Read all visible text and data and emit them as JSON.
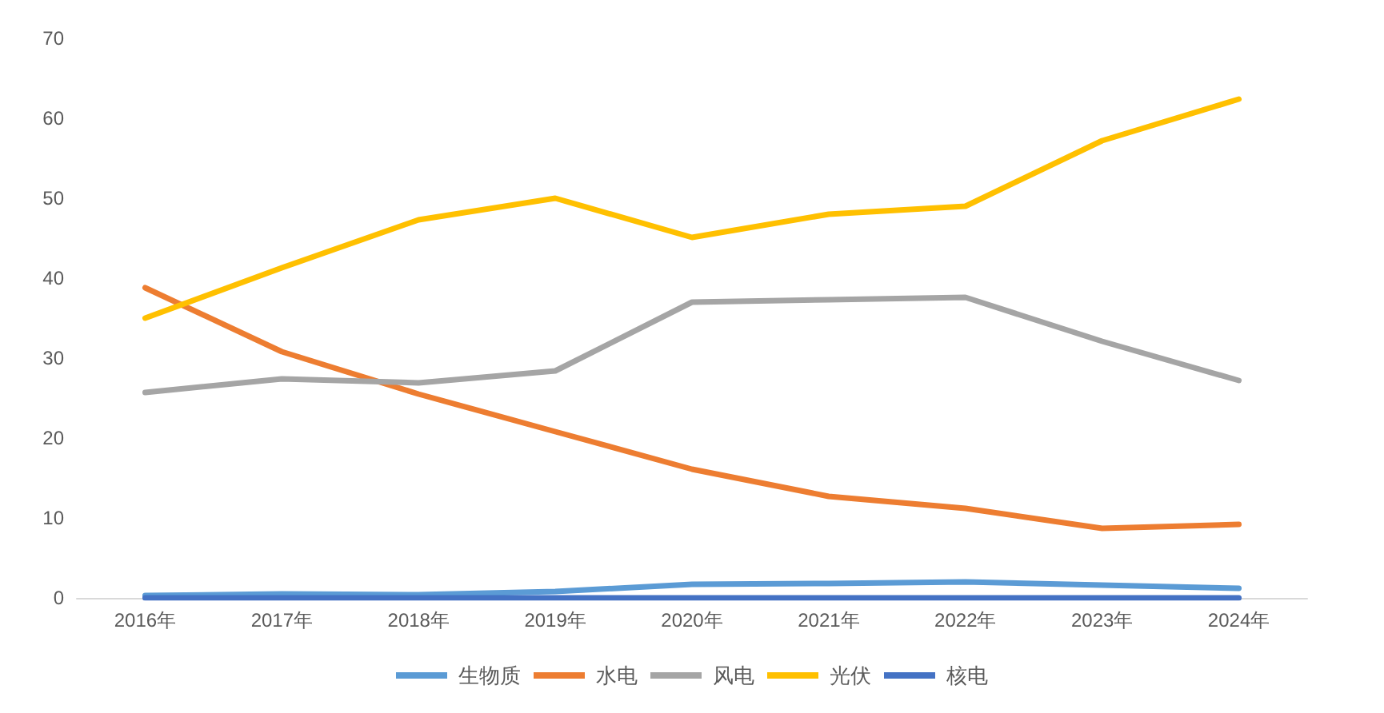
{
  "chart_data": {
    "type": "line",
    "categories": [
      "2016年",
      "2017年",
      "2018年",
      "2019年",
      "2020年",
      "2021年",
      "2022年",
      "2023年",
      "2024年"
    ],
    "series": [
      {
        "name": "生物质",
        "color": "#5b9bd5",
        "values": [
          0.3,
          0.5,
          0.4,
          0.8,
          1.7,
          1.8,
          2.0,
          1.6,
          1.2
        ]
      },
      {
        "name": "水电",
        "color": "#ed7d31",
        "values": [
          38.8,
          30.8,
          25.5,
          20.8,
          16.1,
          12.7,
          11.2,
          8.7,
          9.2
        ]
      },
      {
        "name": "风电",
        "color": "#a5a5a5",
        "values": [
          25.7,
          27.4,
          26.9,
          28.4,
          37.0,
          37.3,
          37.6,
          32.1,
          27.2
        ]
      },
      {
        "name": "光伏",
        "color": "#ffc000",
        "values": [
          35.0,
          41.3,
          47.3,
          50.0,
          45.1,
          48.0,
          49.0,
          57.2,
          62.4
        ]
      },
      {
        "name": "核电",
        "color": "#4472c4",
        "values": [
          0,
          0,
          0,
          0,
          0,
          0,
          0,
          0,
          0
        ]
      }
    ],
    "ylim": [
      0,
      70
    ],
    "yticks": [
      0,
      10,
      20,
      30,
      40,
      50,
      60,
      70
    ],
    "grid": false,
    "legend": "bottom",
    "marker": "none",
    "line_style": "solid"
  }
}
